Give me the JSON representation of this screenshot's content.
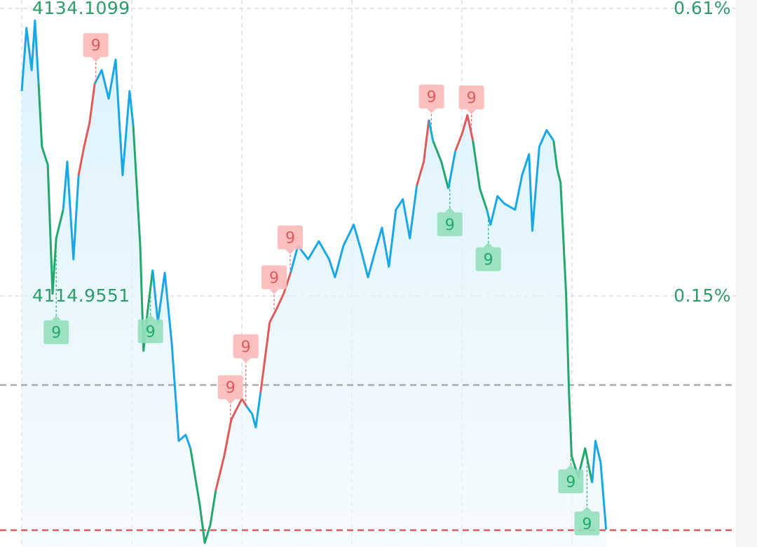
{
  "chart_data": {
    "type": "line",
    "title": "",
    "xlabel": "",
    "ylabel": "",
    "x_unit": "minutes",
    "xlim": [
      0,
      195
    ],
    "grid": true,
    "y_labels": {
      "top_price": "4134.1099",
      "mid_price": "4114.9551",
      "top_pct": "0.61%",
      "mid_pct": "0.15%"
    },
    "y_ticks": [
      4134.1099,
      4114.9551
    ],
    "reference_lines": [
      {
        "name": "previous-close",
        "price": 4109.02,
        "color": "#aaaaaa"
      },
      {
        "name": "current-price",
        "price": 4099.35,
        "color": "#e05a5a"
      }
    ],
    "colors": {
      "up": "#e05a5a",
      "down": "#22a86a",
      "neutral": "#1aa7e8",
      "up_marker_bg": "#fbb8b8",
      "down_marker_bg": "#94dfbb",
      "label": "#2e9c68"
    },
    "segments": [
      {
        "trend": "neutral",
        "points": [
          [
            0,
            4128.6
          ],
          [
            1.3,
            4132.8
          ],
          [
            2.7,
            4130.0
          ],
          [
            3.6,
            4133.3
          ],
          [
            4.6,
            4129.1
          ]
        ]
      },
      {
        "trend": "down",
        "points": [
          [
            4.6,
            4129.1
          ],
          [
            5.5,
            4124.9
          ],
          [
            7.1,
            4123.7
          ],
          [
            8.4,
            4115.1
          ],
          [
            9.4,
            4118.8
          ],
          [
            11.3,
            4120.7
          ]
        ]
      },
      {
        "trend": "neutral",
        "points": [
          [
            11.3,
            4120.7
          ],
          [
            12.4,
            4123.9
          ],
          [
            14.1,
            4117.4
          ],
          [
            15.5,
            4123.0
          ]
        ]
      },
      {
        "trend": "up",
        "points": [
          [
            15.5,
            4123.0
          ],
          [
            17,
            4124.9
          ],
          [
            18.5,
            4126.5
          ],
          [
            19.9,
            4129.1
          ]
        ]
      },
      {
        "trend": "neutral",
        "points": [
          [
            19.9,
            4129.1
          ],
          [
            21.8,
            4130.0
          ],
          [
            23.7,
            4128.1
          ],
          [
            25.6,
            4130.7
          ],
          [
            27.5,
            4123.0
          ],
          [
            29.4,
            4128.6
          ],
          [
            30.4,
            4126.3
          ]
        ]
      },
      {
        "trend": "down",
        "points": [
          [
            30.4,
            4126.3
          ],
          [
            32.3,
            4118.3
          ],
          [
            33.2,
            4111.3
          ],
          [
            34.2,
            4113.7
          ],
          [
            35.7,
            4116.7
          ]
        ]
      },
      {
        "trend": "neutral",
        "points": [
          [
            35.7,
            4116.7
          ],
          [
            37.1,
            4113.2
          ],
          [
            39,
            4116.5
          ],
          [
            40.9,
            4111.8
          ],
          [
            42.8,
            4105.3
          ],
          [
            44.7,
            4105.7
          ],
          [
            46,
            4104.8
          ]
        ]
      },
      {
        "trend": "down",
        "points": [
          [
            46,
            4104.8
          ],
          [
            48.5,
            4101.1
          ],
          [
            49.9,
            4098.5
          ],
          [
            51.4,
            4099.7
          ],
          [
            52.9,
            4102.0
          ]
        ]
      },
      {
        "trend": "up",
        "points": [
          [
            52.9,
            4102.0
          ],
          [
            55.2,
            4104.3
          ],
          [
            57.1,
            4106.7
          ],
          [
            60,
            4108.1
          ],
          [
            61.3,
            4107.6
          ]
        ]
      },
      {
        "trend": "neutral",
        "points": [
          [
            61.3,
            4107.6
          ],
          [
            62.8,
            4107.1
          ],
          [
            63.8,
            4106.2
          ],
          [
            65.1,
            4108.5
          ]
        ]
      },
      {
        "trend": "up",
        "points": [
          [
            65.1,
            4108.5
          ],
          [
            67.6,
            4113.2
          ],
          [
            69.5,
            4114.1
          ],
          [
            71.4,
            4115.1
          ],
          [
            73.3,
            4116.5
          ]
        ]
      },
      {
        "trend": "neutral",
        "points": [
          [
            73.3,
            4116.5
          ],
          [
            75.3,
            4118.3
          ],
          [
            78.1,
            4117.4
          ],
          [
            81,
            4118.6
          ],
          [
            83.8,
            4117.4
          ],
          [
            85.4,
            4116.2
          ],
          [
            87.7,
            4118.3
          ],
          [
            90.5,
            4119.7
          ],
          [
            92.4,
            4118.1
          ],
          [
            94.4,
            4116.2
          ],
          [
            96.3,
            4117.9
          ],
          [
            98.2,
            4119.5
          ],
          [
            100.1,
            4116.9
          ],
          [
            102,
            4120.7
          ],
          [
            103.9,
            4121.4
          ],
          [
            105.8,
            4118.8
          ],
          [
            107.7,
            4122.3
          ]
        ]
      },
      {
        "trend": "up",
        "points": [
          [
            107.7,
            4122.3
          ],
          [
            109.6,
            4123.9
          ],
          [
            111,
            4126.7
          ]
        ]
      },
      {
        "trend": "neutral",
        "points": [
          [
            111,
            4126.7
          ],
          [
            112.1,
            4125.3
          ]
        ]
      },
      {
        "trend": "down",
        "points": [
          [
            112.1,
            4125.3
          ],
          [
            114.4,
            4123.9
          ],
          [
            116.3,
            4122.1
          ]
        ]
      },
      {
        "trend": "neutral",
        "points": [
          [
            116.3,
            4122.1
          ],
          [
            118.2,
            4124.6
          ]
        ]
      },
      {
        "trend": "up",
        "points": [
          [
            118.2,
            4124.6
          ],
          [
            120.1,
            4125.8
          ],
          [
            121.5,
            4127.0
          ],
          [
            123,
            4125.3
          ]
        ]
      },
      {
        "trend": "down",
        "points": [
          [
            123,
            4125.3
          ],
          [
            124.9,
            4122.1
          ],
          [
            126.8,
            4120.7
          ]
        ]
      },
      {
        "trend": "neutral",
        "points": [
          [
            126.8,
            4120.7
          ],
          [
            127.8,
            4119.7
          ],
          [
            129.7,
            4121.6
          ],
          [
            131.6,
            4121.1
          ],
          [
            134.5,
            4120.7
          ],
          [
            136.4,
            4123.0
          ],
          [
            138.3,
            4124.4
          ],
          [
            139.2,
            4119.3
          ],
          [
            141.1,
            4124.9
          ],
          [
            143.1,
            4126.0
          ],
          [
            145,
            4125.3
          ]
        ]
      },
      {
        "trend": "down",
        "points": [
          [
            145,
            4125.3
          ],
          [
            145.9,
            4123.5
          ],
          [
            146.9,
            4122.5
          ],
          [
            148.4,
            4115.1
          ],
          [
            149.2,
            4108.5
          ],
          [
            149.9,
            4104.3
          ],
          [
            151.7,
            4102.9
          ],
          [
            153.6,
            4104.8
          ],
          [
            155.5,
            4102.5
          ]
        ]
      },
      {
        "trend": "neutral",
        "points": [
          [
            155.5,
            4102.5
          ],
          [
            156.4,
            4105.3
          ],
          [
            157.8,
            4103.9
          ],
          [
            159.3,
            4099.4
          ]
        ]
      }
    ],
    "markers": [
      {
        "label": "9",
        "type": "up",
        "t": 20.2
      },
      {
        "label": "9",
        "type": "up",
        "t": 56.9
      },
      {
        "label": "9",
        "type": "up",
        "t": 61.1
      },
      {
        "label": "9",
        "type": "up",
        "t": 68.8
      },
      {
        "label": "9",
        "type": "up",
        "t": 73.2
      },
      {
        "label": "9",
        "type": "up",
        "t": 111.7
      },
      {
        "label": "9",
        "type": "up",
        "t": 122.6
      },
      {
        "label": "9",
        "type": "down",
        "t": 9.4
      },
      {
        "label": "9",
        "type": "down",
        "t": 35.1
      },
      {
        "label": "9",
        "type": "down",
        "t": 116.7
      },
      {
        "label": "9",
        "type": "down",
        "t": 127.2
      },
      {
        "label": "9",
        "type": "down",
        "t": 149.7
      },
      {
        "label": "9",
        "type": "down",
        "t": 154.1
      }
    ]
  }
}
